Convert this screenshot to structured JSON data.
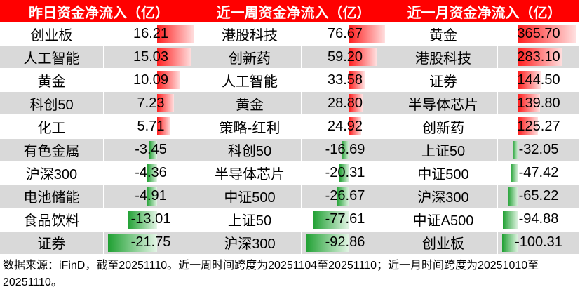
{
  "table": {
    "headers": [
      "昨日资金净流入（亿）",
      "近一周资金净流入（亿）",
      "近一月资金净流入（亿）"
    ],
    "rows": [
      [
        "创业板",
        "16.21",
        "港股科技",
        "76.67",
        "黄金",
        "365.70"
      ],
      [
        "人工智能",
        "15.03",
        "创新药",
        "59.20",
        "港股科技",
        "283.10"
      ],
      [
        "黄金",
        "10.09",
        "人工智能",
        "33.58",
        "证券",
        "144.50"
      ],
      [
        "科创50",
        "7.23",
        "黄金",
        "28.80",
        "半导体芯片",
        "139.80"
      ],
      [
        "化工",
        "5.71",
        "策略-红利",
        "24.92",
        "创新药",
        "125.27"
      ],
      [
        "有色金属",
        "-3.45",
        "科创50",
        "-16.69",
        "上证50",
        "-32.05"
      ],
      [
        "沪深300",
        "-4.36",
        "半导体芯片",
        "-20.31",
        "中证500",
        "-47.42"
      ],
      [
        "电池储能",
        "-4.91",
        "中证500",
        "-26.67",
        "沪深300",
        "-65.22"
      ],
      [
        "食品饮料",
        "-13.01",
        "上证50",
        "-77.61",
        "中证A500",
        "-94.88"
      ],
      [
        "证券",
        "-21.75",
        "沪深300",
        "-92.86",
        "创业板",
        "-100.31"
      ]
    ]
  },
  "footer": "数据来源：iFinD，截至20251110。近一周时间跨度为20251104至20251110；近一月时间跨度为20251010至20251110。"
}
